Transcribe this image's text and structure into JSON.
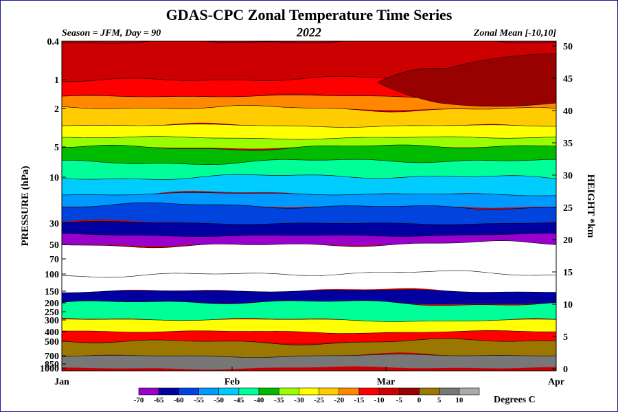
{
  "chart_data": {
    "type": "heatmap",
    "title": "GDAS-CPC Zonal Temperature Time Series",
    "subtitle_left": "Season = JFM, Day =  90",
    "subtitle_center": "2022",
    "subtitle_right": "Zonal Mean [-10,10]",
    "ylabel_left": "PRESSURE (hPa)",
    "ylabel_right": "HEIGHT *km",
    "pressure_ticks": [
      "0.4",
      "1",
      "2",
      "5",
      "10",
      "30",
      "50",
      "70",
      "100",
      "150",
      "200",
      "250",
      "300",
      "400",
      "500",
      "700",
      "850",
      "1000"
    ],
    "height_ticks": [
      "50",
      "45",
      "40",
      "35",
      "30",
      "25",
      "20",
      "15",
      "10",
      "5",
      "0"
    ],
    "x_ticks": [
      "Jan",
      "Feb",
      "Mar",
      "Apr"
    ],
    "x_range_days": [
      0,
      90
    ],
    "colorbar": {
      "levels": [
        "-70",
        "-65",
        "-60",
        "-55",
        "-50",
        "-45",
        "-40",
        "-35",
        "-30",
        "-25",
        "-20",
        "-15",
        "-10",
        "-5",
        "0",
        "5",
        "10"
      ],
      "colors": [
        "#9900cc",
        "#0000a0",
        "#0044dd",
        "#0099ff",
        "#00ccff",
        "#00ff99",
        "#00bb00",
        "#99ff00",
        "#ffff00",
        "#ffcc00",
        "#ff8800",
        "#ff0000",
        "#cc0000",
        "#990000",
        "#997700",
        "#777777",
        "#aaaaaa"
      ],
      "units": "Degrees C"
    },
    "layers": [
      {
        "level_hpa": 0.4,
        "temp_c": -10
      },
      {
        "level_hpa": 1,
        "temp_c": -10
      },
      {
        "level_hpa": 1.5,
        "temp_c": -15
      },
      {
        "level_hpa": 2,
        "temp_c": -20
      },
      {
        "level_hpa": 3,
        "temp_c": -25
      },
      {
        "level_hpa": 4,
        "temp_c": -30
      },
      {
        "level_hpa": 5,
        "temp_c": -35
      },
      {
        "level_hpa": 7,
        "temp_c": -40
      },
      {
        "level_hpa": 10,
        "temp_c": -45
      },
      {
        "level_hpa": 15,
        "temp_c": -50
      },
      {
        "level_hpa": 20,
        "temp_c": -55
      },
      {
        "level_hpa": 30,
        "temp_c": -60
      },
      {
        "level_hpa": 40,
        "temp_c": -65
      },
      {
        "level_hpa": 50,
        "temp_c": -70
      },
      {
        "level_hpa": 100,
        "temp_c": -80
      },
      {
        "level_hpa": 150,
        "temp_c": -70
      },
      {
        "level_hpa": 200,
        "temp_c": -55
      },
      {
        "level_hpa": 300,
        "temp_c": -35
      },
      {
        "level_hpa": 400,
        "temp_c": -20
      },
      {
        "level_hpa": 500,
        "temp_c": -5
      },
      {
        "level_hpa": 700,
        "temp_c": 5
      },
      {
        "level_hpa": 1000,
        "temp_c": 10
      }
    ]
  }
}
